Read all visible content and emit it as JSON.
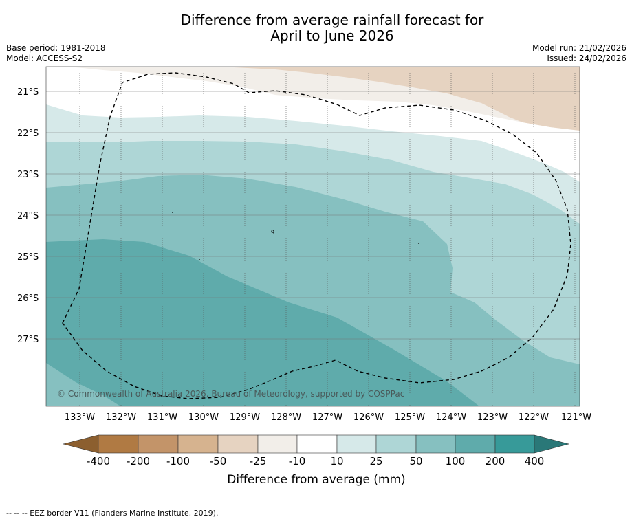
{
  "title_line1": "Difference from average rainfall forecast for",
  "title_line2": "April to June 2026",
  "base_period": "Base period: 1981-2018",
  "model": "Model: ACCESS-S2",
  "model_run": "Model run: 21/02/2026",
  "issued": "Issued: 24/02/2026",
  "map": {
    "lat_labels": [
      "21°S",
      "22°S",
      "23°S",
      "24°S",
      "25°S",
      "26°S",
      "27°S"
    ],
    "lon_labels": [
      "133°W",
      "132°W",
      "131°W",
      "130°W",
      "129°W",
      "128°W",
      "127°W",
      "126°W",
      "125°W",
      "124°W",
      "123°W",
      "122°W",
      "121°W"
    ],
    "copyright": "© Commonwealth of Australia 2026, Bureau of Meteorology, supported by COSPPac",
    "island_marker": "q"
  },
  "colorbar": {
    "title": "Difference from average (mm)",
    "tick_labels": [
      "-400",
      "-200",
      "-100",
      "-50",
      "-25",
      "-10",
      "10",
      "25",
      "50",
      "100",
      "200",
      "400"
    ],
    "colors": [
      "#8c5f2f",
      "#b07a43",
      "#c39469",
      "#d6b38f",
      "#e6d3c1",
      "#f2eee9",
      "#ffffff",
      "#d6e9e9",
      "#aed6d6",
      "#86c0c0",
      "#5fabab",
      "#379a99",
      "#2a7878"
    ]
  },
  "footnote": "--  --  -- EEZ border V11 (Flanders Marine Institute, 2019)."
}
